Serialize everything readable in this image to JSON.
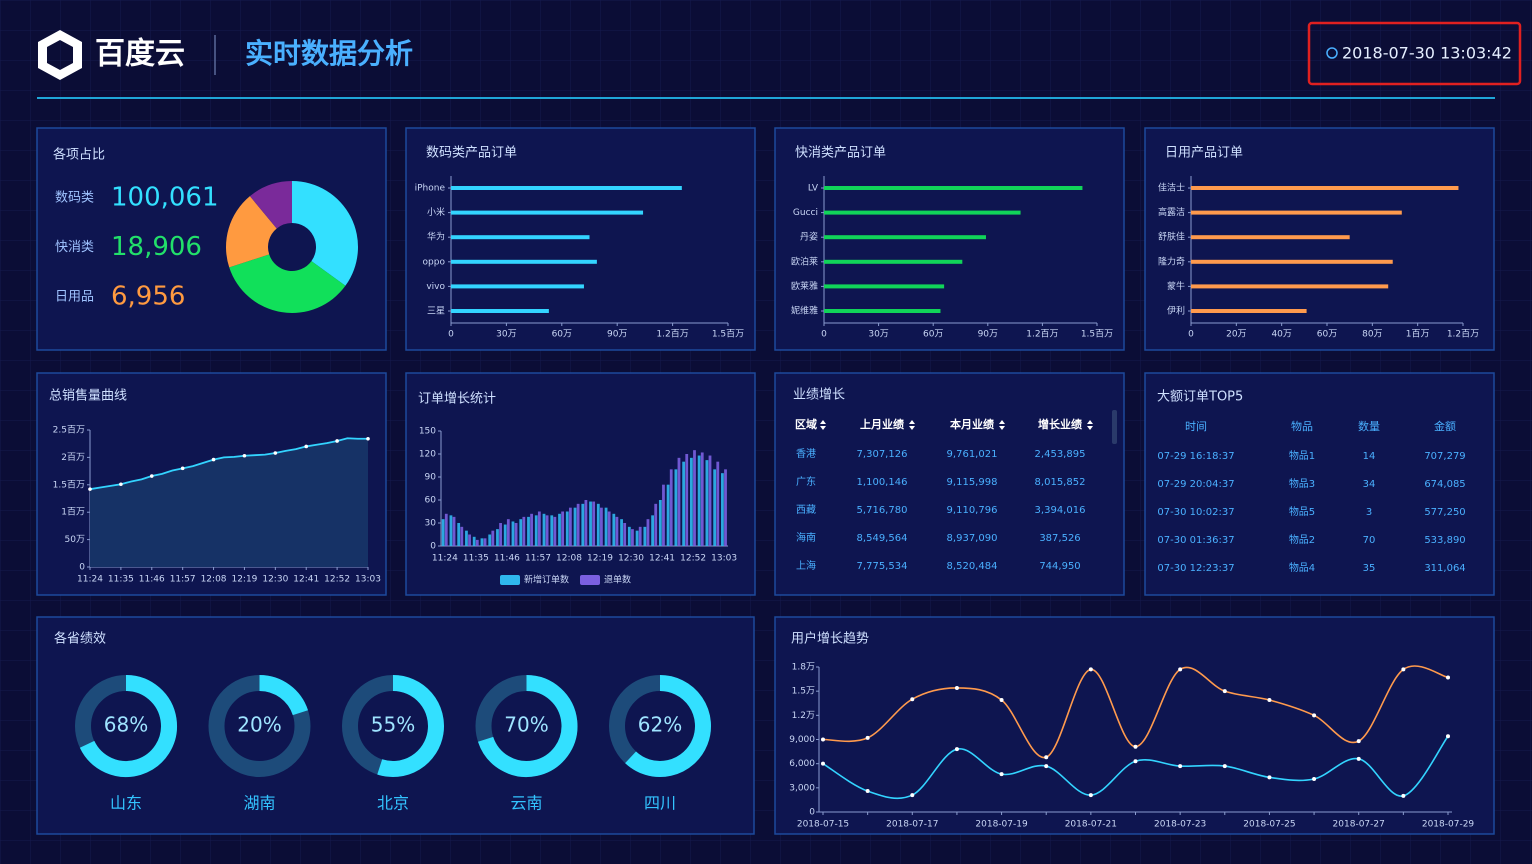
{
  "header": {
    "logo": "百度云",
    "title": "实时数据分析",
    "datetime": "2018-07-30 13:03:42"
  },
  "summary": {
    "title": "各项占比",
    "items": [
      {
        "label": "数码类",
        "value": "100,061",
        "color": "#33e0ff"
      },
      {
        "label": "快消类",
        "value": "18,906",
        "color": "#22e06a"
      },
      {
        "label": "日用品",
        "value": "6,956",
        "color": "#ff9a40"
      }
    ]
  },
  "chart_data": [
    {
      "type": "pie",
      "categories": [
        null,
        null,
        null,
        null
      ],
      "values": [
        35,
        35,
        19,
        11
      ],
      "colors": [
        "#33e0ff",
        "#11e05a",
        "#ff9a40",
        "#7a2a9a"
      ]
    },
    {
      "type": "bar",
      "orientation": "horizontal",
      "title": "数码类产品订单",
      "categories": [
        "iPhone",
        "小米",
        "华为",
        "oppo",
        "vivo",
        "三星"
      ],
      "values": [
        1250000,
        1040000,
        750000,
        790000,
        720000,
        530000
      ],
      "color": "#33d4ff",
      "xlim": [
        0,
        1500000
      ],
      "xticks": [
        0,
        {
          "value": 300000,
          "label": "30万"
        },
        {
          "value": 600000,
          "label": "60万"
        },
        {
          "value": 900000,
          "label": "90万"
        },
        {
          "value": 1200000,
          "label": "1.2百万"
        },
        {
          "value": 1500000,
          "label": "1.5百万"
        }
      ]
    },
    {
      "type": "bar",
      "orientation": "horizontal",
      "title": "快消类产品订单",
      "categories": [
        "LV",
        "Gucci",
        "丹姿",
        "欧泊莱",
        "欧莱雅",
        "妮维雅"
      ],
      "values": [
        1420000,
        1080000,
        890000,
        760000,
        660000,
        640000
      ],
      "color": "#11d459",
      "xlim": [
        0,
        1500000
      ],
      "xticks": [
        0,
        {
          "value": 300000,
          "label": "30万"
        },
        {
          "value": 600000,
          "label": "60万"
        },
        {
          "value": 900000,
          "label": "90万"
        },
        {
          "value": 1200000,
          "label": "1.2百万"
        },
        {
          "value": 1500000,
          "label": "1.5百万"
        }
      ]
    },
    {
      "type": "bar",
      "orientation": "horizontal",
      "title": "日用产品订单",
      "categories": [
        "佳洁士",
        "高露洁",
        "舒肤佳",
        "隆力奇",
        "蒙牛",
        "伊利"
      ],
      "values": [
        1180000,
        930000,
        700000,
        890000,
        870000,
        510000
      ],
      "color": "#ff9a4d",
      "xlim": [
        0,
        1200000
      ],
      "xticks": [
        0,
        {
          "value": 200000,
          "label": "20万"
        },
        {
          "value": 400000,
          "label": "40万"
        },
        {
          "value": 600000,
          "label": "60万"
        },
        {
          "value": 800000,
          "label": "80万"
        },
        {
          "value": 1000000,
          "label": "1百万"
        },
        {
          "value": 1200000,
          "label": "1.2百万"
        }
      ]
    },
    {
      "type": "area",
      "title": "总销售量曲线",
      "categories": [
        "11:24",
        null,
        null,
        "11:35",
        null,
        null,
        "11:46",
        null,
        null,
        "11:57",
        null,
        null,
        "12:08",
        null,
        null,
        "12:19",
        null,
        null,
        "12:30",
        null,
        null,
        "12:41",
        null,
        null,
        "12:52",
        null,
        null,
        "13:03"
      ],
      "values": [
        1420000,
        1450000,
        1480000,
        1510000,
        1560000,
        1600000,
        1660000,
        1700000,
        1760000,
        1800000,
        1840000,
        1900000,
        1960000,
        2000000,
        2010000,
        2030000,
        2040000,
        2050000,
        2080000,
        2120000,
        2150000,
        2200000,
        2230000,
        2260000,
        2300000,
        2350000,
        2340000,
        2340000
      ],
      "color": "#33d4ff",
      "fill": "#163266",
      "ylim": [
        0,
        2500000
      ],
      "yticks": [
        0,
        {
          "value": 500000,
          "label": "50万"
        },
        {
          "value": 1000000,
          "label": "1百万"
        },
        {
          "value": 1500000,
          "label": "1.5百万"
        },
        {
          "value": 2000000,
          "label": "2百万"
        },
        {
          "value": 2500000,
          "label": "2.5百万"
        }
      ]
    },
    {
      "type": "grouped-bar",
      "title": "订单增长统计",
      "categories": [
        "11:24",
        null,
        null,
        null,
        "11:35",
        null,
        null,
        null,
        "11:46",
        null,
        null,
        null,
        "11:57",
        null,
        null,
        null,
        "12:08",
        null,
        null,
        null,
        "12:19",
        null,
        null,
        null,
        "12:30",
        null,
        null,
        null,
        "12:41",
        null,
        null,
        null,
        "12:52",
        null,
        null,
        null,
        "13:03"
      ],
      "series": [
        {
          "name": "新增订单数",
          "color": "#2fb8ee",
          "values": [
            35,
            40,
            30,
            20,
            12,
            10,
            15,
            22,
            28,
            32,
            35,
            38,
            40,
            42,
            40,
            42,
            45,
            50,
            55,
            58,
            55,
            50,
            42,
            35,
            25,
            20,
            25,
            40,
            60,
            80,
            100,
            110,
            115,
            118,
            112,
            100,
            95
          ]
        },
        {
          "name": "退单数",
          "color": "#7b5fe0",
          "values": [
            42,
            38,
            25,
            15,
            8,
            10,
            20,
            30,
            35,
            30,
            38,
            42,
            45,
            40,
            38,
            45,
            50,
            55,
            60,
            58,
            50,
            45,
            38,
            30,
            22,
            25,
            35,
            55,
            80,
            100,
            115,
            120,
            125,
            122,
            118,
            110,
            100
          ]
        }
      ],
      "ylim": [
        0,
        150
      ],
      "yticks": [
        0,
        30,
        60,
        90,
        120,
        150
      ],
      "legend": "bottom"
    },
    {
      "type": "gauge",
      "title": "各省绩效",
      "categories": [
        "山东",
        "湖南",
        "北京",
        "云南",
        "四川"
      ],
      "values": [
        68,
        20,
        55,
        70,
        62
      ],
      "value_labels": [
        "68%",
        "20%",
        "55%",
        "70%",
        "62%"
      ],
      "color": "#33e0ff",
      "track_color": "#1d4b7a"
    },
    {
      "type": "line",
      "title": "用户增长趋势",
      "smooth": true,
      "categories": [
        "2018-07-15",
        null,
        "2018-07-17",
        null,
        "2018-07-19",
        null,
        "2018-07-21",
        null,
        "2018-07-23",
        null,
        "2018-07-25",
        null,
        "2018-07-27",
        null,
        "2018-07-29"
      ],
      "series": [
        {
          "color": "#ff9a4d",
          "values": [
            9000,
            9200,
            14000,
            15400,
            13900,
            6800,
            17700,
            8100,
            17700,
            15000,
            13900,
            12000,
            8800,
            17700,
            16700
          ]
        },
        {
          "color": "#33d4ff",
          "values": [
            6000,
            2600,
            2100,
            7800,
            4700,
            5700,
            2100,
            6300,
            5700,
            5700,
            4300,
            4100,
            6600,
            2000,
            9400
          ]
        }
      ],
      "ylim": [
        0,
        18000
      ],
      "yticks": [
        0,
        {
          "value": 3000,
          "label": "3,000"
        },
        {
          "value": 6000,
          "label": "6,000"
        },
        {
          "value": 9000,
          "label": "9,000"
        },
        {
          "value": 12000,
          "label": "1.2万"
        },
        {
          "value": 15000,
          "label": "1.5万"
        },
        {
          "value": 18000,
          "label": "1.8万"
        }
      ]
    }
  ],
  "performance_table": {
    "title": "业绩增长",
    "columns": [
      "区域",
      "上月业绩",
      "本月业绩",
      "增长业绩"
    ],
    "rows": [
      [
        "香港",
        "7,307,126",
        "9,761,021",
        "2,453,895"
      ],
      [
        "广东",
        "1,100,146",
        "9,115,998",
        "8,015,852"
      ],
      [
        "西藏",
        "5,716,780",
        "9,110,796",
        "3,394,016"
      ],
      [
        "海南",
        "8,549,564",
        "8,937,090",
        "387,526"
      ],
      [
        "上海",
        "7,775,534",
        "8,520,484",
        "744,950"
      ]
    ]
  },
  "top_orders": {
    "title": "大额订单TOP5",
    "columns": [
      "时间",
      "物品",
      "数量",
      "金额"
    ],
    "rows": [
      [
        "07-29 16:18:37",
        "物品1",
        "14",
        "707,279"
      ],
      [
        "07-29 20:04:37",
        "物品3",
        "34",
        "674,085"
      ],
      [
        "07-30 10:02:37",
        "物品5",
        "3",
        "577,250"
      ],
      [
        "07-30 01:36:37",
        "物品2",
        "70",
        "533,890"
      ],
      [
        "07-30 12:23:37",
        "物品4",
        "35",
        "311,064"
      ]
    ]
  }
}
